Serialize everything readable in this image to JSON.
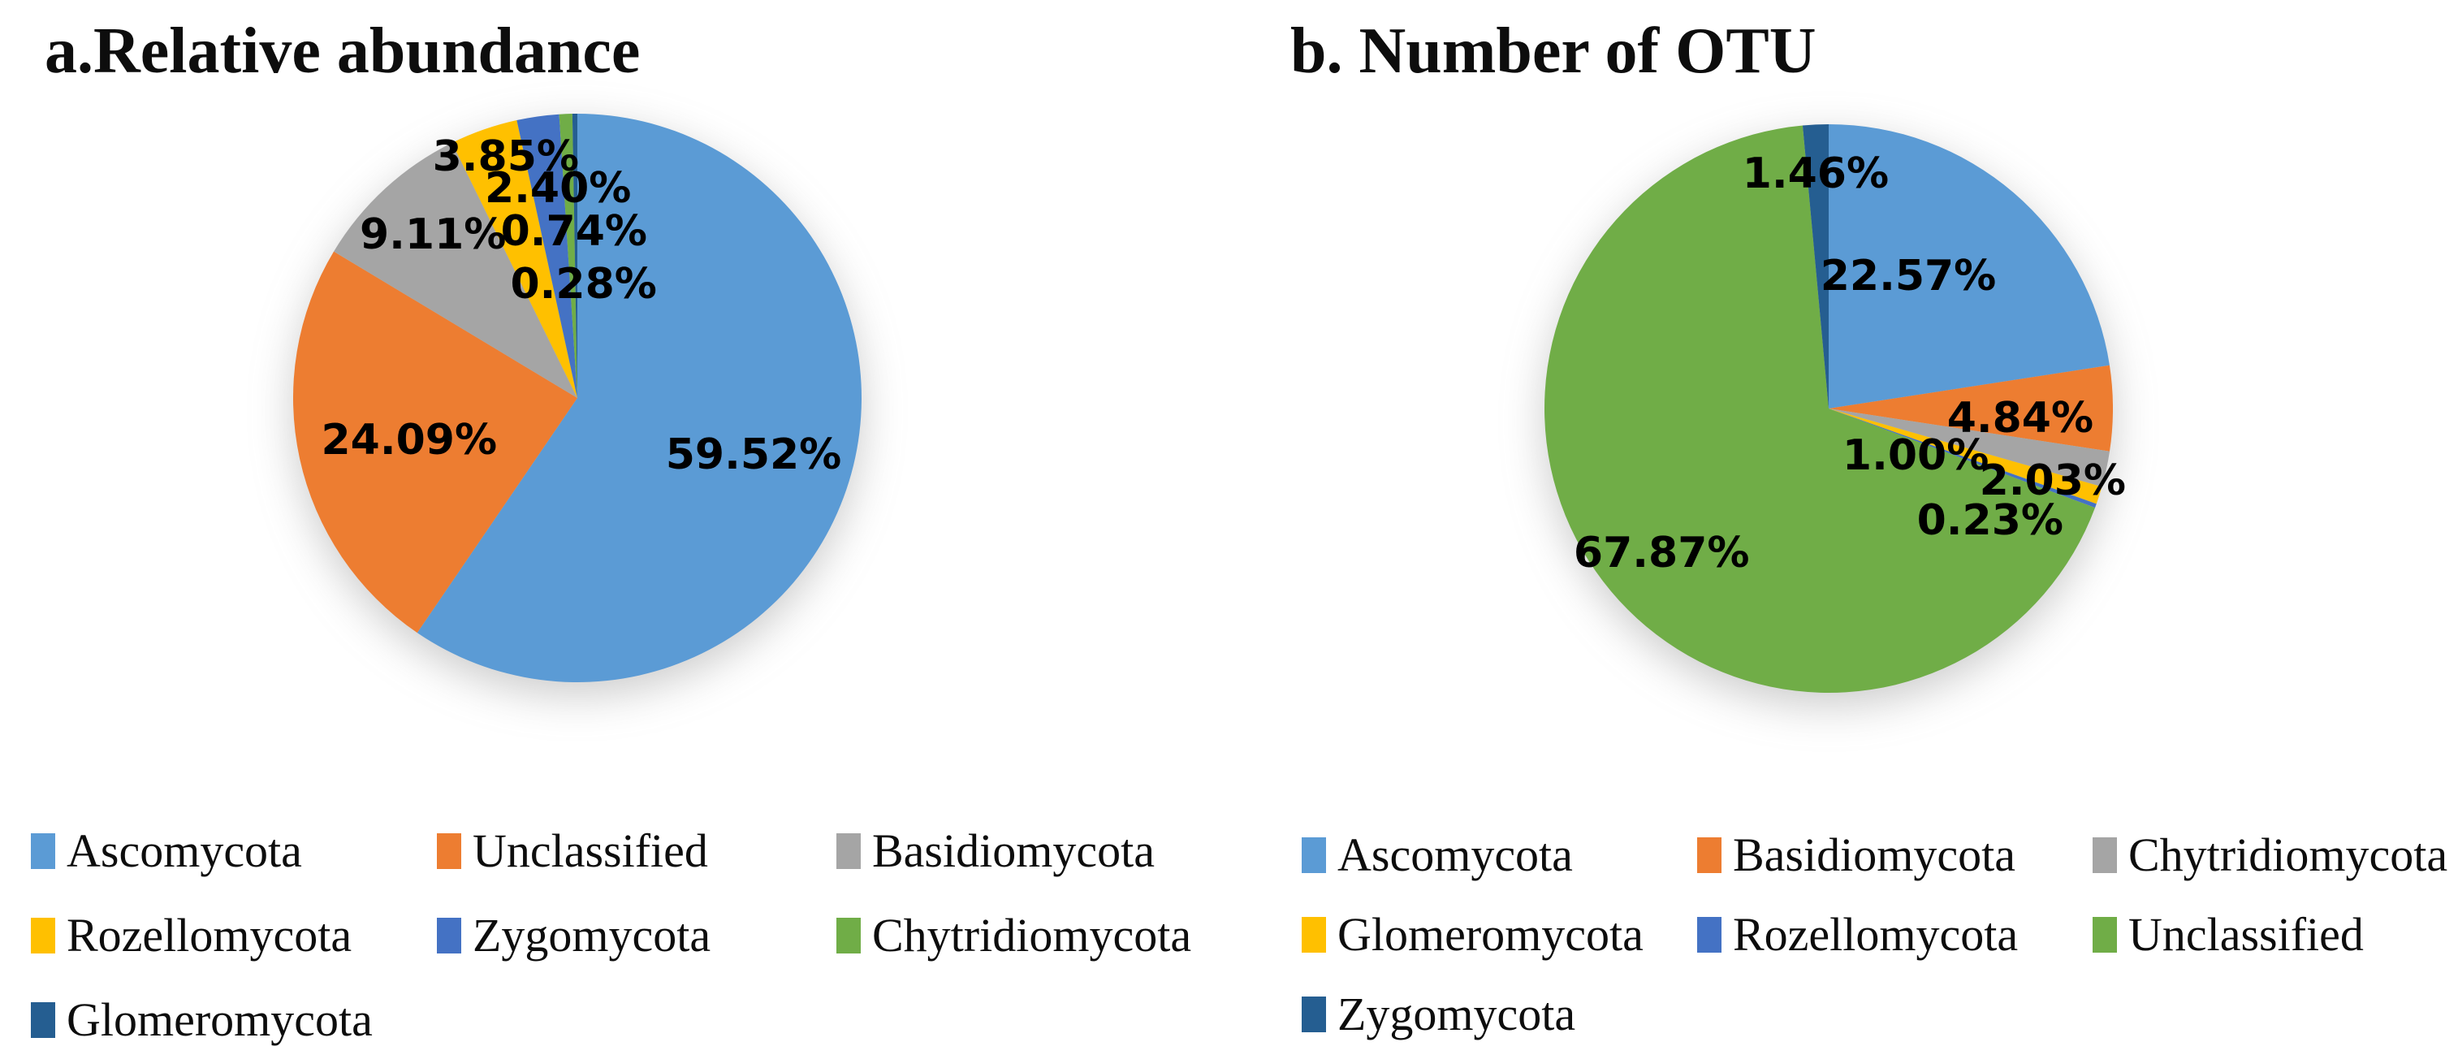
{
  "page": {
    "background": "#ffffff"
  },
  "palette": {
    "blue": "#5B9BD5",
    "orange": "#ED7D31",
    "gray": "#A5A5A5",
    "yellow": "#FFC000",
    "medium_blue": "#4472C4",
    "green": "#70AD47",
    "dark_navy": "#255E91"
  },
  "chart_data": [
    {
      "panel": "a",
      "type": "pie",
      "title": "a.Relative abundance",
      "start_angle_deg": 0,
      "direction": "clockwise",
      "legend_position": "bottom",
      "categories": [
        "Ascomycota",
        "Unclassified",
        "Basidiomycota",
        "Rozellomycota",
        "Zygomycota",
        "Chytridiomycota",
        "Glomeromycota"
      ],
      "values": [
        59.52,
        24.09,
        9.11,
        3.85,
        2.4,
        0.74,
        0.28
      ],
      "data_labels": [
        "59.52%",
        "24.09%",
        "9.11%",
        "3.85%",
        "2.40%",
        "0.74%",
        "0.28%"
      ],
      "colors": [
        "#5B9BD5",
        "#ED7D31",
        "#A5A5A5",
        "#FFC000",
        "#4472C4",
        "#70AD47",
        "#255E91"
      ],
      "label_positions": [
        {
          "x": 0.81,
          "y": 0.6
        },
        {
          "x": 0.204,
          "y": 0.574
        },
        {
          "x": 0.246,
          "y": 0.213
        },
        {
          "x": 0.374,
          "y": 0.076
        },
        {
          "x": 0.466,
          "y": 0.131
        },
        {
          "x": 0.494,
          "y": 0.207
        },
        {
          "x": 0.511,
          "y": 0.3
        }
      ],
      "legend_entries": [
        "Ascomycota",
        "Unclassified",
        "Basidiomycota",
        "Rozellomycota",
        "Zygomycota",
        "Chytridiomycota",
        "Glomeromycota"
      ]
    },
    {
      "panel": "b",
      "type": "pie",
      "title": "b. Number of OTU",
      "start_angle_deg": 0,
      "direction": "clockwise",
      "legend_position": "bottom",
      "categories": [
        "Ascomycota",
        "Basidiomycota",
        "Chytridiomycota",
        "Glomeromycota",
        "Rozellomycota",
        "Unclassified",
        "Zygomycota"
      ],
      "values": [
        22.57,
        4.84,
        2.03,
        1.0,
        0.23,
        67.87,
        1.46
      ],
      "data_labels": [
        "22.57%",
        "4.84%",
        "2.03%",
        "1.00%",
        "0.23%",
        "67.87%",
        "1.46%"
      ],
      "colors": [
        "#5B9BD5",
        "#ED7D31",
        "#A5A5A5",
        "#FFC000",
        "#4472C4",
        "#70AD47",
        "#255E91"
      ],
      "label_positions": [
        {
          "x": 0.64,
          "y": 0.267
        },
        {
          "x": 0.837,
          "y": 0.517
        },
        {
          "x": 0.894,
          "y": 0.627
        },
        {
          "x": 0.653,
          "y": 0.583
        },
        {
          "x": 0.784,
          "y": 0.697
        },
        {
          "x": 0.206,
          "y": 0.754
        },
        {
          "x": 0.477,
          "y": 0.087
        }
      ],
      "legend_entries": [
        "Ascomycota",
        "Basidiomycota",
        "Chytridiomycota",
        "Glomeromycota",
        "Rozellomycota",
        "Unclassified",
        "Zygomycota"
      ]
    }
  ]
}
